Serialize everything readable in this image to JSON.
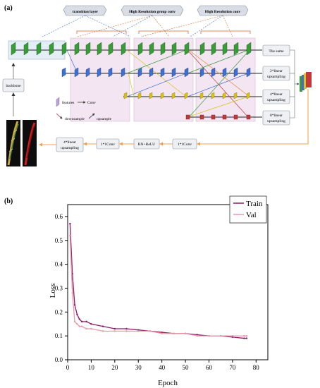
{
  "panel_a": {
    "letter": "(a)",
    "headers": {
      "transition": "transition layer",
      "group": "High Resolution group conv",
      "hr": "High Resolution conv"
    },
    "backbone": "backbone",
    "legend": {
      "features": "features",
      "conv": "Conv",
      "downsample": "downsample",
      "upsample": "upsample"
    },
    "outputs": [
      "The same",
      "2*linear",
      "upsampling",
      "4*linear",
      "upsampling",
      "8*linear",
      "upsampling"
    ],
    "bottom": {
      "c1": "1*1Conv",
      "bn": "BN+ReLU",
      "c2": "1*1Conv",
      "up1": "4*linear",
      "up2": "upsampling"
    },
    "colors": {
      "green": "#3a9b3a",
      "blue": "#3f6fd0",
      "yellow": "#d9c21a",
      "red": "#c2383b",
      "pink_region": "#f3e6f2",
      "orange_line": "#f0a04b"
    }
  },
  "panel_b": {
    "letter": "(b)",
    "chart_data": {
      "type": "line",
      "title": "",
      "xlabel": "Epoch",
      "ylabel": "Loss",
      "xlim": [
        0,
        85
      ],
      "ylim": [
        0.0,
        0.65
      ],
      "x_ticks": [
        "0",
        "10",
        "20",
        "30",
        "40",
        "50",
        "60",
        "70",
        "80"
      ],
      "y_ticks": [
        "0.0",
        "0.1",
        "0.2",
        "0.3",
        "0.4",
        "0.5",
        "0.6"
      ],
      "legend_position": "top-right",
      "series": [
        {
          "name": "Train",
          "color": "#8b1a6b",
          "x": [
            1,
            2,
            3,
            4,
            5,
            6,
            8,
            10,
            15,
            20,
            25,
            30,
            35,
            40,
            45,
            50,
            55,
            60,
            65,
            70,
            75,
            76
          ],
          "y": [
            0.57,
            0.36,
            0.23,
            0.19,
            0.17,
            0.16,
            0.16,
            0.15,
            0.14,
            0.13,
            0.13,
            0.125,
            0.12,
            0.115,
            0.11,
            0.11,
            0.105,
            0.1,
            0.1,
            0.095,
            0.09,
            0.09
          ]
        },
        {
          "name": "Val",
          "color": "#e89aa8",
          "x": [
            1,
            2,
            3,
            4,
            5,
            6,
            8,
            10,
            15,
            20,
            25,
            30,
            35,
            40,
            45,
            50,
            55,
            60,
            65,
            70,
            75,
            76
          ],
          "y": [
            0.52,
            0.28,
            0.16,
            0.15,
            0.14,
            0.14,
            0.13,
            0.13,
            0.12,
            0.12,
            0.12,
            0.12,
            0.12,
            0.11,
            0.11,
            0.11,
            0.1,
            0.1,
            0.1,
            0.1,
            0.1,
            0.1
          ]
        }
      ]
    }
  }
}
